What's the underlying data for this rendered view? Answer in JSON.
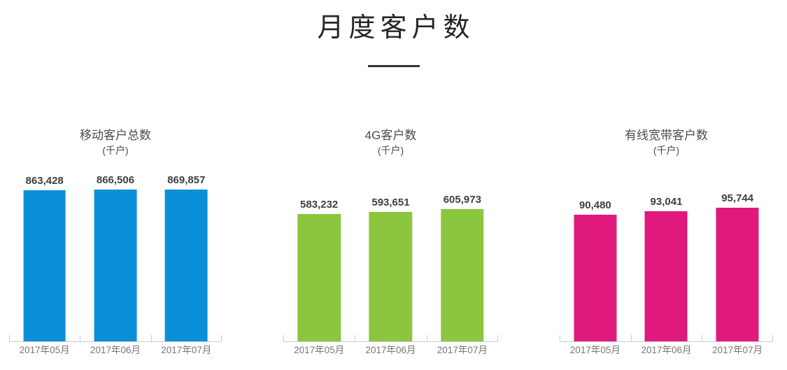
{
  "page": {
    "title": "月度客户数"
  },
  "chart_data": [
    {
      "type": "bar",
      "id": "mobile-total",
      "title": "移动客户总数",
      "subtitle": "(千户)",
      "categories": [
        "2017年05月",
        "2017年06月",
        "2017年07月"
      ],
      "values": [
        863428,
        866506,
        869857
      ],
      "labels": [
        "863,428",
        "866,506",
        "869,857"
      ],
      "color": "#0a8fd8",
      "xlabel": "",
      "ylabel": "千户",
      "ylim": [
        0,
        1000000
      ],
      "grid": false,
      "legend": false,
      "data_labels": true
    },
    {
      "type": "bar",
      "id": "4g",
      "title": "4G客户数",
      "subtitle": "(千户)",
      "categories": [
        "2017年05月",
        "2017年06月",
        "2017年07月"
      ],
      "values": [
        583232,
        593651,
        605973
      ],
      "labels": [
        "583,232",
        "593,651",
        "605,973"
      ],
      "color": "#8cc63f",
      "xlabel": "",
      "ylabel": "千户",
      "ylim": [
        0,
        800000
      ],
      "grid": false,
      "legend": false,
      "data_labels": true
    },
    {
      "type": "bar",
      "id": "broadband",
      "title": "有线宽带客户数",
      "subtitle": "(千户)",
      "categories": [
        "2017年05月",
        "2017年06月",
        "2017年07月"
      ],
      "values": [
        90480,
        93041,
        95744
      ],
      "labels": [
        "90,480",
        "93,041",
        "95,744"
      ],
      "color": "#e0197d",
      "xlabel": "",
      "ylabel": "千户",
      "ylim": [
        0,
        125000
      ],
      "grid": false,
      "legend": false,
      "data_labels": true
    }
  ],
  "style": {
    "axis_line_color": "#c9cdd2",
    "value_label_color": "#3f3f3f",
    "axis_label_color": "#777777",
    "chart_title_color": "#4a4a4a",
    "main_title_color": "#252525"
  }
}
